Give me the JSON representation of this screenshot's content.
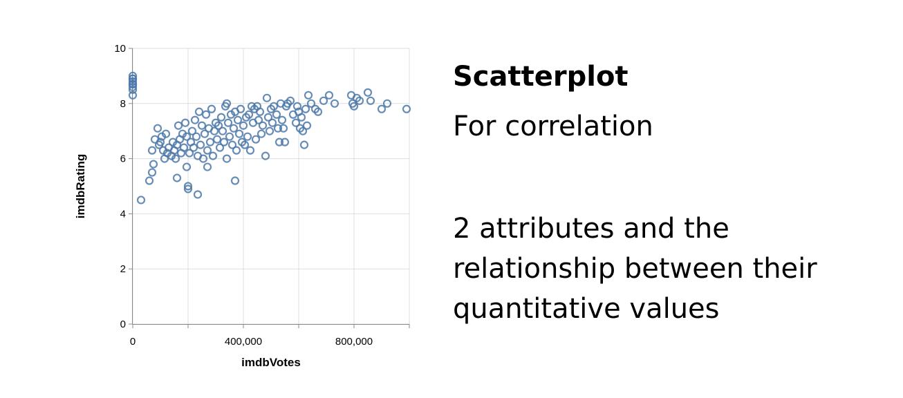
{
  "panel": {
    "title": "Scatterplot",
    "subtitle": "For correlation",
    "description": "2 attributes and the relationship between their quantitative values"
  },
  "chart_data": {
    "type": "scatter",
    "xlabel": "imdbVotes",
    "ylabel": "imdbRating",
    "xlim": [
      0,
      1000000
    ],
    "ylim": [
      0,
      10
    ],
    "x_ticks": [
      0,
      200000,
      400000,
      600000,
      800000,
      1000000
    ],
    "x_tick_labels": [
      "0",
      "",
      "400,000",
      "",
      "800,000",
      ""
    ],
    "y_ticks": [
      0,
      2,
      4,
      6,
      8,
      10
    ],
    "y_tick_labels": [
      "0",
      "2",
      "4",
      "6",
      "8",
      "10"
    ],
    "grid": true,
    "marker": "open-circle",
    "color": "#4c78a8",
    "points": [
      [
        0,
        9.0
      ],
      [
        0,
        8.9
      ],
      [
        0,
        8.8
      ],
      [
        0,
        8.7
      ],
      [
        0,
        8.6
      ],
      [
        0,
        8.5
      ],
      [
        0,
        8.3
      ],
      [
        0,
        8.9
      ],
      [
        0,
        8.7
      ],
      [
        30000,
        4.5
      ],
      [
        60000,
        5.2
      ],
      [
        70000,
        5.5
      ],
      [
        70000,
        6.3
      ],
      [
        75000,
        5.8
      ],
      [
        80000,
        6.7
      ],
      [
        90000,
        7.1
      ],
      [
        95000,
        6.5
      ],
      [
        100000,
        6.6
      ],
      [
        105000,
        6.8
      ],
      [
        110000,
        6.3
      ],
      [
        115000,
        6.0
      ],
      [
        120000,
        6.9
      ],
      [
        125000,
        6.2
      ],
      [
        130000,
        6.4
      ],
      [
        140000,
        6.1
      ],
      [
        145000,
        6.6
      ],
      [
        150000,
        6.3
      ],
      [
        155000,
        6.0
      ],
      [
        160000,
        5.3
      ],
      [
        160000,
        6.5
      ],
      [
        165000,
        7.2
      ],
      [
        170000,
        6.7
      ],
      [
        175000,
        6.2
      ],
      [
        180000,
        6.9
      ],
      [
        185000,
        6.4
      ],
      [
        190000,
        7.3
      ],
      [
        195000,
        5.7
      ],
      [
        195000,
        6.8
      ],
      [
        200000,
        5.0
      ],
      [
        200000,
        4.9
      ],
      [
        205000,
        6.2
      ],
      [
        210000,
        6.6
      ],
      [
        215000,
        7.0
      ],
      [
        220000,
        6.4
      ],
      [
        225000,
        7.4
      ],
      [
        230000,
        6.8
      ],
      [
        235000,
        4.7
      ],
      [
        235000,
        6.1
      ],
      [
        240000,
        7.7
      ],
      [
        245000,
        6.5
      ],
      [
        250000,
        7.2
      ],
      [
        255000,
        6.0
      ],
      [
        260000,
        6.9
      ],
      [
        265000,
        7.6
      ],
      [
        270000,
        6.3
      ],
      [
        270000,
        5.7
      ],
      [
        275000,
        7.1
      ],
      [
        280000,
        6.6
      ],
      [
        285000,
        7.8
      ],
      [
        290000,
        6.1
      ],
      [
        295000,
        7.0
      ],
      [
        300000,
        7.3
      ],
      [
        305000,
        6.7
      ],
      [
        310000,
        7.2
      ],
      [
        315000,
        6.4
      ],
      [
        320000,
        7.5
      ],
      [
        325000,
        7.0
      ],
      [
        330000,
        6.6
      ],
      [
        335000,
        7.9
      ],
      [
        340000,
        8.0
      ],
      [
        340000,
        6.0
      ],
      [
        345000,
        7.3
      ],
      [
        350000,
        6.8
      ],
      [
        355000,
        7.6
      ],
      [
        360000,
        6.5
      ],
      [
        365000,
        7.1
      ],
      [
        370000,
        5.2
      ],
      [
        370000,
        7.7
      ],
      [
        375000,
        6.3
      ],
      [
        380000,
        7.4
      ],
      [
        385000,
        6.9
      ],
      [
        390000,
        7.8
      ],
      [
        395000,
        6.6
      ],
      [
        400000,
        7.2
      ],
      [
        405000,
        6.5
      ],
      [
        410000,
        7.5
      ],
      [
        415000,
        6.8
      ],
      [
        420000,
        7.6
      ],
      [
        425000,
        6.3
      ],
      [
        430000,
        7.9
      ],
      [
        435000,
        7.3
      ],
      [
        440000,
        7.8
      ],
      [
        445000,
        6.7
      ],
      [
        450000,
        7.9
      ],
      [
        455000,
        7.4
      ],
      [
        460000,
        7.7
      ],
      [
        465000,
        6.9
      ],
      [
        470000,
        7.2
      ],
      [
        480000,
        6.1
      ],
      [
        485000,
        8.2
      ],
      [
        490000,
        7.5
      ],
      [
        495000,
        7.0
      ],
      [
        500000,
        7.8
      ],
      [
        505000,
        7.3
      ],
      [
        510000,
        7.9
      ],
      [
        520000,
        7.6
      ],
      [
        525000,
        7.1
      ],
      [
        530000,
        6.6
      ],
      [
        535000,
        8.0
      ],
      [
        540000,
        7.4
      ],
      [
        545000,
        7.1
      ],
      [
        550000,
        6.6
      ],
      [
        555000,
        7.9
      ],
      [
        560000,
        8.0
      ],
      [
        570000,
        8.1
      ],
      [
        580000,
        7.6
      ],
      [
        590000,
        7.3
      ],
      [
        595000,
        7.9
      ],
      [
        600000,
        7.7
      ],
      [
        605000,
        7.1
      ],
      [
        610000,
        7.5
      ],
      [
        615000,
        7.0
      ],
      [
        620000,
        6.5
      ],
      [
        625000,
        7.8
      ],
      [
        630000,
        7.2
      ],
      [
        635000,
        8.3
      ],
      [
        645000,
        8.0
      ],
      [
        660000,
        7.8
      ],
      [
        670000,
        7.7
      ],
      [
        690000,
        8.1
      ],
      [
        710000,
        8.3
      ],
      [
        730000,
        8.0
      ],
      [
        790000,
        8.3
      ],
      [
        795000,
        8.0
      ],
      [
        800000,
        7.9
      ],
      [
        810000,
        8.2
      ],
      [
        820000,
        8.1
      ],
      [
        850000,
        8.4
      ],
      [
        860000,
        8.1
      ],
      [
        900000,
        7.8
      ],
      [
        920000,
        8.0
      ],
      [
        990000,
        7.8
      ]
    ]
  }
}
